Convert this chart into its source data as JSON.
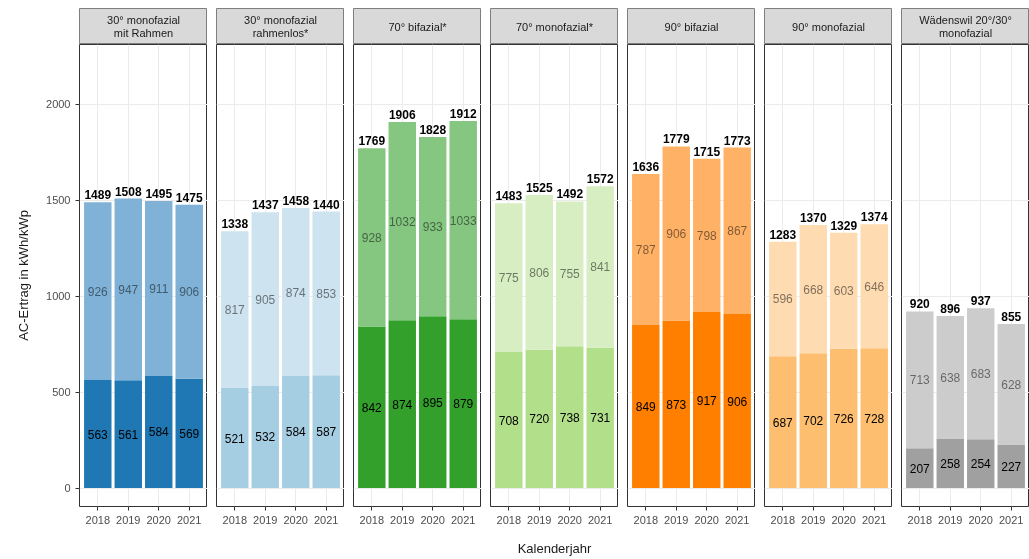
{
  "chart_data": [
    {
      "type": "bar",
      "stacked": true,
      "title": "30° monofazial\nmit Rahmen",
      "ylabel": "AC-Ertrag in kWh/kWp",
      "categories": [
        "2018",
        "2019",
        "2020",
        "2021"
      ],
      "ylim": [
        -96,
        2310
      ],
      "yticks": [
        0,
        500,
        1000,
        1500,
        2000
      ],
      "grid": true,
      "data_labels": true,
      "series": [
        {
          "color": "#1f78b4",
          "values": [
            563,
            561,
            584,
            569
          ]
        },
        {
          "color": "#7fb2d6",
          "values": [
            926,
            947,
            911,
            906
          ]
        }
      ],
      "totals": [
        "1489",
        "1508",
        "1495",
        "1475"
      ]
    },
    {
      "type": "bar",
      "stacked": true,
      "title": "30° monofazial\nrahmenlos*",
      "categories": [
        "2018",
        "2019",
        "2020",
        "2021"
      ],
      "ylim": [
        -96,
        2310
      ],
      "yticks": [
        0,
        500,
        1000,
        1500,
        2000
      ],
      "tick_labels": "x",
      "grid": true,
      "data_labels": true,
      "series": [
        {
          "color": "#a6cee3",
          "values": [
            521,
            532,
            584,
            587
          ]
        },
        {
          "color": "#cde3ef",
          "values": [
            817,
            905,
            874,
            853
          ]
        }
      ],
      "totals": [
        "1338",
        "1437",
        "1458",
        "1440"
      ]
    },
    {
      "type": "bar",
      "stacked": true,
      "title": "70° bifazial*",
      "categories": [
        "2018",
        "2019",
        "2020",
        "2021"
      ],
      "ylim": [
        -96,
        2310
      ],
      "yticks": [
        0,
        500,
        1000,
        1500,
        2000
      ],
      "tick_labels": "x",
      "grid": true,
      "data_labels": true,
      "series": [
        {
          "color": "#33a02c",
          "values": [
            842,
            874,
            895,
            879
          ]
        },
        {
          "color": "#85c680",
          "values": [
            928,
            1032,
            933,
            1033
          ]
        }
      ],
      "totals": [
        "1769",
        "1906",
        "1828",
        "1912"
      ]
    },
    {
      "type": "bar",
      "stacked": true,
      "title": "70° monofazial*",
      "xlabel": "Kalenderjahr",
      "categories": [
        "2018",
        "2019",
        "2020",
        "2021"
      ],
      "ylim": [
        -96,
        2310
      ],
      "yticks": [
        0,
        500,
        1000,
        1500,
        2000
      ],
      "tick_labels": "x",
      "grid": true,
      "data_labels": true,
      "series": [
        {
          "color": "#b2df8a",
          "values": [
            708,
            720,
            738,
            731
          ]
        },
        {
          "color": "#d6eec2",
          "values": [
            775,
            806,
            755,
            841
          ]
        }
      ],
      "totals": [
        "1483",
        "1525",
        "1492",
        "1572"
      ]
    },
    {
      "type": "bar",
      "stacked": true,
      "title": "90° bifazial",
      "categories": [
        "2018",
        "2019",
        "2020",
        "2021"
      ],
      "ylim": [
        -96,
        2310
      ],
      "yticks": [
        0,
        500,
        1000,
        1500,
        2000
      ],
      "tick_labels": "x",
      "grid": true,
      "data_labels": true,
      "series": [
        {
          "color": "#ff7f00",
          "values": [
            849,
            873,
            917,
            906
          ]
        },
        {
          "color": "#ffb266",
          "values": [
            787,
            906,
            798,
            867
          ]
        }
      ],
      "totals": [
        "1636",
        "1779",
        "1715",
        "1773"
      ]
    },
    {
      "type": "bar",
      "stacked": true,
      "title": "90° monofazial",
      "categories": [
        "2018",
        "2019",
        "2020",
        "2021"
      ],
      "ylim": [
        -96,
        2310
      ],
      "yticks": [
        0,
        500,
        1000,
        1500,
        2000
      ],
      "tick_labels": "x",
      "grid": true,
      "data_labels": true,
      "series": [
        {
          "color": "#fdbf6f",
          "values": [
            687,
            702,
            726,
            728
          ]
        },
        {
          "color": "#fedbb0",
          "values": [
            596,
            668,
            603,
            646
          ]
        }
      ],
      "totals": [
        "1283",
        "1370",
        "1329",
        "1374"
      ]
    },
    {
      "type": "bar",
      "stacked": true,
      "title": "Wädenswil 20°/30°\nmonofazial",
      "categories": [
        "2018",
        "2019",
        "2020",
        "2021"
      ],
      "ylim": [
        -96,
        2310
      ],
      "yticks": [
        0,
        500,
        1000,
        1500,
        2000
      ],
      "tick_labels": "x",
      "grid": true,
      "data_labels": true,
      "series": [
        {
          "color": "#a0a0a0",
          "values": [
            207,
            258,
            254,
            227
          ]
        },
        {
          "color": "#cccccc",
          "values": [
            713,
            638,
            683,
            628
          ]
        }
      ],
      "totals": [
        "920",
        "896",
        "937",
        "855"
      ]
    }
  ]
}
